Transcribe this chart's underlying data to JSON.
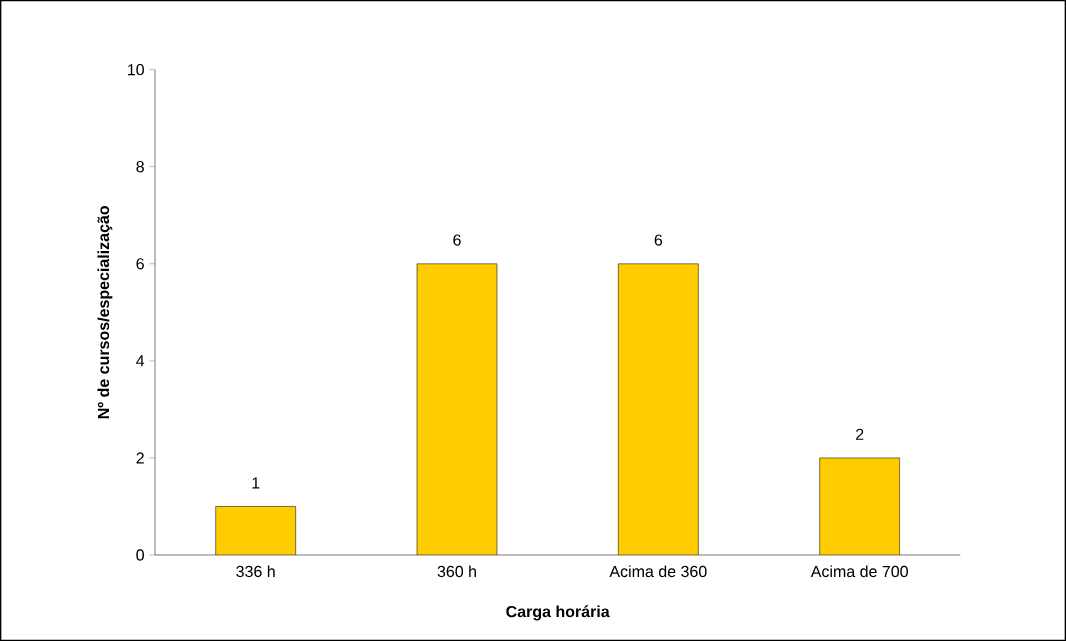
{
  "chart_data": {
    "type": "bar",
    "xlabel": "Carga horária",
    "ylabel": "Nº de cursos/especialização",
    "categories": [
      "336 h",
      "360 h",
      "Acima de 360",
      "Acima de 700"
    ],
    "values": [
      1,
      6,
      6,
      2
    ],
    "color": "#ffcc00",
    "ylim": [
      0,
      10
    ],
    "yticks": [
      0,
      2,
      4,
      6,
      8,
      10
    ],
    "data_labels": true,
    "grid": false
  }
}
